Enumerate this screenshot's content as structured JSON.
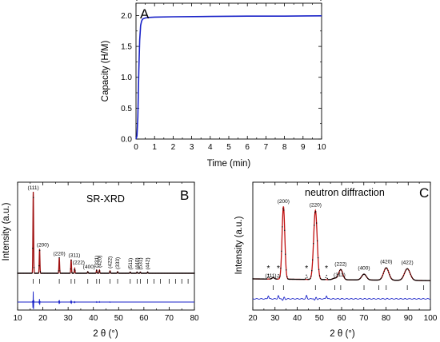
{
  "chart_data": [
    {
      "panel": "A",
      "type": "line",
      "panel_label": "A",
      "xlabel": "Time (min)",
      "ylabel": "Capacity (H/M)",
      "xlim": [
        0,
        10
      ],
      "ylim": [
        0,
        2.2
      ],
      "xticks": [
        "0",
        "1",
        "2",
        "3",
        "4",
        "5",
        "6",
        "7",
        "8",
        "9",
        "10"
      ],
      "yticks": [
        "0.0",
        "0.5",
        "1.0",
        "1.5",
        "2.0"
      ],
      "line_color": "#1a23c8",
      "x": [
        0.0,
        0.05,
        0.1,
        0.15,
        0.2,
        0.25,
        0.3,
        0.35,
        0.4,
        0.5,
        0.7,
        1.0,
        2.0,
        4.0,
        6.0,
        8.0,
        10.0
      ],
      "y": [
        0.0,
        0.05,
        0.35,
        1.1,
        1.6,
        1.84,
        1.91,
        1.94,
        1.95,
        1.96,
        1.97,
        1.975,
        1.98,
        1.985,
        1.99,
        1.99,
        1.995
      ]
    },
    {
      "panel": "B",
      "type": "line",
      "panel_label": "B",
      "title": "SR-XRD",
      "xlabel": "2 θ (°)",
      "ylabel": "Intensity (a.u.)",
      "xlim": [
        10,
        80
      ],
      "xticks": [
        "10",
        "20",
        "30",
        "40",
        "50",
        "60",
        "70",
        "80"
      ],
      "peaks": [
        {
          "label": "(111)",
          "x": 16.2,
          "intensity": 100
        },
        {
          "label": "(200)",
          "x": 18.7,
          "intensity": 30
        },
        {
          "label": "(220)",
          "x": 26.5,
          "intensity": 19
        },
        {
          "label": "(311)",
          "x": 31.2,
          "intensity": 17
        },
        {
          "label": "(222)",
          "x": 32.6,
          "intensity": 6
        },
        {
          "label": "(400)",
          "x": 37.8,
          "intensity": 2
        },
        {
          "label": "(331)",
          "x": 41.3,
          "intensity": 4
        },
        {
          "label": "(420)",
          "x": 42.4,
          "intensity": 4
        },
        {
          "label": "(422)",
          "x": 46.6,
          "intensity": 3
        },
        {
          "label": "(333)",
          "x": 49.6,
          "intensity": 2
        },
        {
          "label": "(511)",
          "x": 54.6,
          "intensity": 1.5
        },
        {
          "label": "(440)",
          "x": 57.3,
          "intensity": 1.5
        },
        {
          "label": "(531)",
          "x": 58.6,
          "intensity": 1.5
        },
        {
          "label": "(442)",
          "x": 61.5,
          "intensity": 1.5
        }
      ],
      "tick_marks_x": [
        16.2,
        18.7,
        26.5,
        31.2,
        32.6,
        37.8,
        41.3,
        42.4,
        46.6,
        49.6,
        54.6,
        57.3,
        58.6,
        61.5,
        64.0,
        66.5,
        70.0,
        72.5,
        75.0,
        77.5
      ],
      "observed_color": "#000000",
      "calculated_color": "#a01010",
      "difference_color": "#1a23c8"
    },
    {
      "panel": "C",
      "type": "line",
      "panel_label": "C",
      "title": "neutron diffraction",
      "xlabel": "2 θ (°)",
      "ylabel": "Intensity (a.u.)",
      "xlim": [
        20,
        100
      ],
      "xticks": [
        "20",
        "30",
        "40",
        "50",
        "60",
        "70",
        "80",
        "90",
        "100"
      ],
      "peaks": [
        {
          "label": "(111)",
          "x": 29.2,
          "intensity": 2
        },
        {
          "label": "(200)",
          "x": 33.8,
          "intensity": 100
        },
        {
          "label": "(220)",
          "x": 48.2,
          "intensity": 95
        },
        {
          "label": "(311)",
          "x": 56.9,
          "intensity": 2
        },
        {
          "label": "(222)",
          "x": 59.6,
          "intensity": 14
        },
        {
          "label": "(400)",
          "x": 70.1,
          "intensity": 8
        },
        {
          "label": "(420)",
          "x": 80.1,
          "intensity": 17
        },
        {
          "label": "(422)",
          "x": 89.6,
          "intensity": 16
        }
      ],
      "impurity_marker": "*",
      "impurity_x": [
        27.0,
        31.5,
        44.2,
        53.2
      ],
      "tick_marks_x": [
        29.2,
        33.8,
        48.2,
        56.9,
        59.6,
        70.1,
        76.8,
        80.1,
        89.6,
        97.0
      ],
      "observed_color": "#000000",
      "calculated_color": "#c01010",
      "difference_color": "#1a23c8"
    }
  ]
}
